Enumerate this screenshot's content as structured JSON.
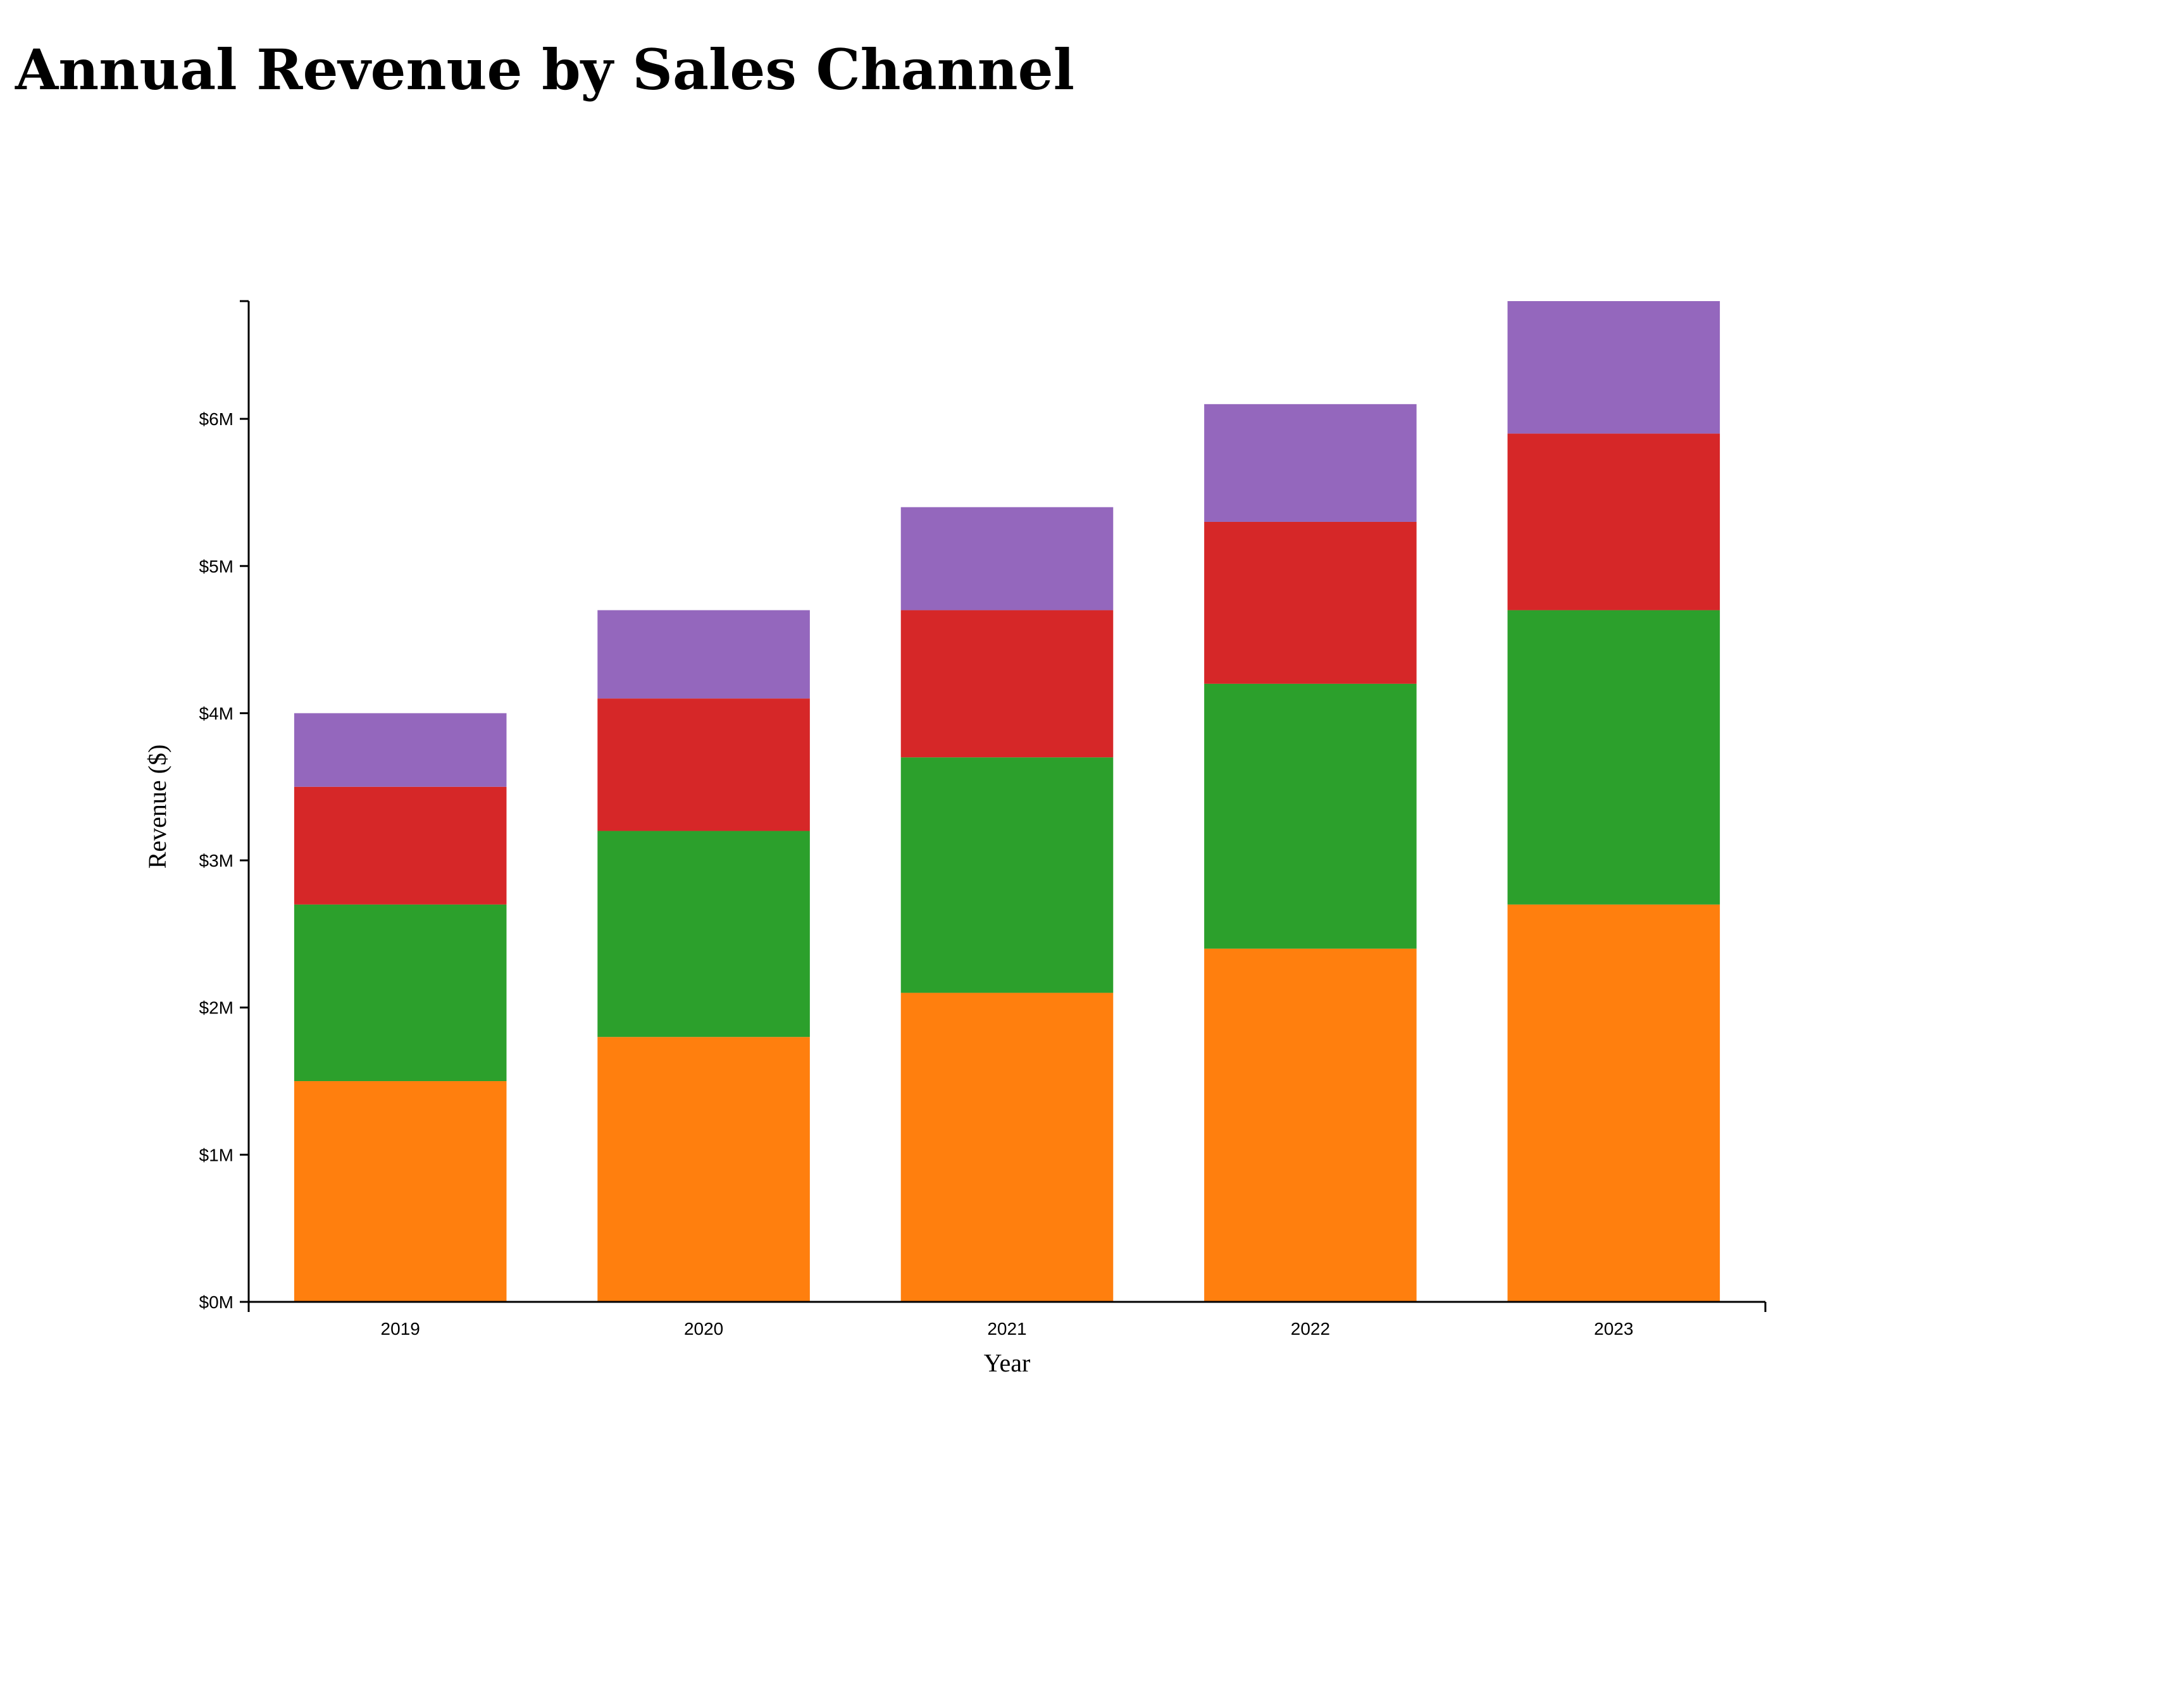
{
  "chart_data": {
    "type": "bar",
    "stacked": true,
    "title": "Annual Revenue by Sales Channel",
    "xlabel": "Year",
    "ylabel": "Revenue ($)",
    "categories": [
      "2019",
      "2020",
      "2021",
      "2022",
      "2023"
    ],
    "ylim": [
      0,
      6.8
    ],
    "yunit_prefix": "$",
    "yunit_suffix": "M",
    "yticks": [
      0,
      1,
      2,
      3,
      4,
      5,
      6
    ],
    "ytick_labels": [
      "$0M",
      "$1M",
      "$2M",
      "$3M",
      "$4M",
      "$5M",
      "$6M"
    ],
    "grid": false,
    "legend": "none",
    "series": [
      {
        "color": "#ff7f0e",
        "values": [
          1.5,
          1.8,
          2.1,
          2.4,
          2.7
        ]
      },
      {
        "color": "#2ca02c",
        "values": [
          1.2,
          1.4,
          1.6,
          1.8,
          2.0
        ]
      },
      {
        "color": "#d62728",
        "values": [
          0.8,
          0.9,
          1.0,
          1.1,
          1.2
        ]
      },
      {
        "color": "#9467bd",
        "values": [
          0.5,
          0.6,
          0.7,
          0.8,
          0.9
        ]
      }
    ]
  }
}
